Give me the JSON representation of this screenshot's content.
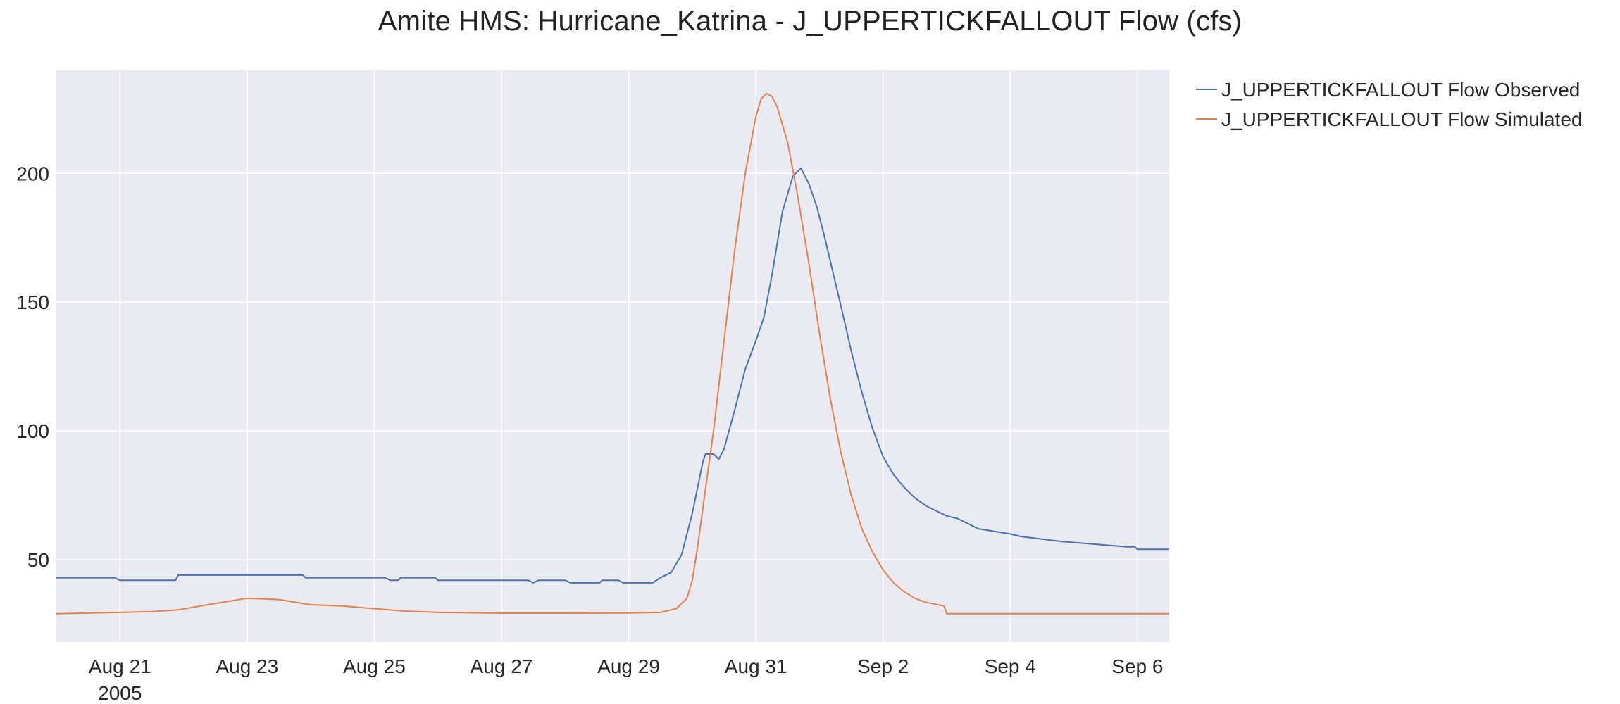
{
  "chart_data": {
    "type": "line",
    "title": "Amite HMS: Hurricane_Katrina - J_UPPERTICKFALLOUT Flow (cfs)",
    "xlabel": "",
    "ylabel": "",
    "x_axis": {
      "type": "date",
      "range": [
        "2005-08-20 00:00",
        "2005-09-06 12:00"
      ],
      "tick_labels": [
        "Aug 21",
        "Aug 23",
        "Aug 25",
        "Aug 27",
        "Aug 29",
        "Aug 31",
        "Sep 2",
        "Sep 4",
        "Sep 6"
      ],
      "tick_dates": [
        "2005-08-21",
        "2005-08-23",
        "2005-08-25",
        "2005-08-27",
        "2005-08-29",
        "2005-08-31",
        "2005-09-02",
        "2005-09-04",
        "2005-09-06"
      ],
      "year_label": "2005"
    },
    "y_axis": {
      "range": [
        18,
        240
      ],
      "ticks": [
        50,
        100,
        150,
        200
      ],
      "tick_labels": [
        "50",
        "100",
        "150",
        "200"
      ]
    },
    "grid": true,
    "legend_position": "outside-top-right",
    "series": [
      {
        "name": "J_UPPERTICKFALLOUT Flow Observed",
        "color": "#4c72b0",
        "points": [
          [
            "2005-08-20 00:00",
            43
          ],
          [
            "2005-08-20 22:00",
            43
          ],
          [
            "2005-08-21 00:00",
            42
          ],
          [
            "2005-08-21 21:00",
            42
          ],
          [
            "2005-08-21 22:00",
            44
          ],
          [
            "2005-08-23 21:00",
            44
          ],
          [
            "2005-08-23 22:00",
            43
          ],
          [
            "2005-08-25 04:00",
            43
          ],
          [
            "2005-08-25 06:00",
            42
          ],
          [
            "2005-08-25 09:00",
            42
          ],
          [
            "2005-08-25 10:00",
            43
          ],
          [
            "2005-08-25 23:00",
            43
          ],
          [
            "2005-08-26 00:00",
            42
          ],
          [
            "2005-08-27 10:00",
            42
          ],
          [
            "2005-08-27 12:00",
            41
          ],
          [
            "2005-08-27 14:00",
            42
          ],
          [
            "2005-08-28 00:00",
            42
          ],
          [
            "2005-08-28 02:00",
            41
          ],
          [
            "2005-08-28 13:00",
            41
          ],
          [
            "2005-08-28 14:00",
            42
          ],
          [
            "2005-08-28 20:00",
            42
          ],
          [
            "2005-08-28 22:00",
            41
          ],
          [
            "2005-08-29 09:00",
            41
          ],
          [
            "2005-08-29 12:00",
            43
          ],
          [
            "2005-08-29 16:00",
            45
          ],
          [
            "2005-08-29 20:00",
            52
          ],
          [
            "2005-08-30 00:00",
            68
          ],
          [
            "2005-08-30 04:00",
            88
          ],
          [
            "2005-08-30 05:00",
            91
          ],
          [
            "2005-08-30 08:00",
            91
          ],
          [
            "2005-08-30 10:00",
            89
          ],
          [
            "2005-08-30 12:00",
            93
          ],
          [
            "2005-08-30 16:00",
            108
          ],
          [
            "2005-08-30 20:00",
            124
          ],
          [
            "2005-08-31 00:00",
            135
          ],
          [
            "2005-08-31 03:00",
            144
          ],
          [
            "2005-08-31 06:00",
            160
          ],
          [
            "2005-08-31 10:00",
            185
          ],
          [
            "2005-08-31 14:00",
            199
          ],
          [
            "2005-08-31 17:00",
            202
          ],
          [
            "2005-08-31 20:00",
            196
          ],
          [
            "2005-08-31 23:00",
            187
          ],
          [
            "2005-09-01 02:00",
            175
          ],
          [
            "2005-09-01 05:00",
            162
          ],
          [
            "2005-09-01 08:00",
            149
          ],
          [
            "2005-09-01 12:00",
            131
          ],
          [
            "2005-09-01 16:00",
            115
          ],
          [
            "2005-09-01 20:00",
            101
          ],
          [
            "2005-09-02 00:00",
            90
          ],
          [
            "2005-09-02 04:00",
            83
          ],
          [
            "2005-09-02 08:00",
            78
          ],
          [
            "2005-09-02 12:00",
            74
          ],
          [
            "2005-09-02 16:00",
            71
          ],
          [
            "2005-09-02 20:00",
            69
          ],
          [
            "2005-09-03 00:00",
            67
          ],
          [
            "2005-09-03 04:00",
            66
          ],
          [
            "2005-09-03 08:00",
            64
          ],
          [
            "2005-09-03 12:00",
            62
          ],
          [
            "2005-09-03 18:00",
            61
          ],
          [
            "2005-09-04 00:00",
            60
          ],
          [
            "2005-09-04 04:00",
            59
          ],
          [
            "2005-09-04 12:00",
            58
          ],
          [
            "2005-09-04 20:00",
            57
          ],
          [
            "2005-09-05 08:00",
            56
          ],
          [
            "2005-09-05 20:00",
            55
          ],
          [
            "2005-09-05 23:00",
            55
          ],
          [
            "2005-09-06 00:00",
            54
          ],
          [
            "2005-09-06 12:00",
            54
          ]
        ]
      },
      {
        "name": "J_UPPERTICKFALLOUT Flow Simulated",
        "color": "#dd8452",
        "points": [
          [
            "2005-08-20 00:00",
            29
          ],
          [
            "2005-08-21 00:00",
            29.5
          ],
          [
            "2005-08-21 12:00",
            29.8
          ],
          [
            "2005-08-21 22:00",
            30.5
          ],
          [
            "2005-08-22 12:00",
            33
          ],
          [
            "2005-08-23 00:00",
            35
          ],
          [
            "2005-08-23 12:00",
            34.5
          ],
          [
            "2005-08-24 00:00",
            32.5
          ],
          [
            "2005-08-24 12:00",
            32
          ],
          [
            "2005-08-25 00:00",
            31
          ],
          [
            "2005-08-25 12:00",
            30
          ],
          [
            "2005-08-26 00:00",
            29.5
          ],
          [
            "2005-08-27 00:00",
            29.2
          ],
          [
            "2005-08-28 00:00",
            29.2
          ],
          [
            "2005-08-29 00:00",
            29.3
          ],
          [
            "2005-08-29 12:00",
            29.5
          ],
          [
            "2005-08-29 18:00",
            31
          ],
          [
            "2005-08-29 22:00",
            35
          ],
          [
            "2005-08-30 00:00",
            42
          ],
          [
            "2005-08-30 02:00",
            55
          ],
          [
            "2005-08-30 04:00",
            70
          ],
          [
            "2005-08-30 08:00",
            100
          ],
          [
            "2005-08-30 12:00",
            135
          ],
          [
            "2005-08-30 16:00",
            170
          ],
          [
            "2005-08-30 20:00",
            200
          ],
          [
            "2005-08-31 00:00",
            222
          ],
          [
            "2005-08-31 02:00",
            229
          ],
          [
            "2005-08-31 04:00",
            231
          ],
          [
            "2005-08-31 06:00",
            230
          ],
          [
            "2005-08-31 08:00",
            226
          ],
          [
            "2005-08-31 12:00",
            212
          ],
          [
            "2005-08-31 16:00",
            190
          ],
          [
            "2005-08-31 20:00",
            165
          ],
          [
            "2005-09-01 00:00",
            138
          ],
          [
            "2005-09-01 04:00",
            113
          ],
          [
            "2005-09-01 08:00",
            92
          ],
          [
            "2005-09-01 12:00",
            75
          ],
          [
            "2005-09-01 16:00",
            62
          ],
          [
            "2005-09-01 20:00",
            53
          ],
          [
            "2005-09-02 00:00",
            46
          ],
          [
            "2005-09-02 04:00",
            41
          ],
          [
            "2005-09-02 08:00",
            37.5
          ],
          [
            "2005-09-02 12:00",
            35
          ],
          [
            "2005-09-02 16:00",
            33.5
          ],
          [
            "2005-09-02 23:00",
            32
          ],
          [
            "2005-09-03 00:00",
            29
          ],
          [
            "2005-09-06 12:00",
            29
          ]
        ]
      }
    ]
  }
}
